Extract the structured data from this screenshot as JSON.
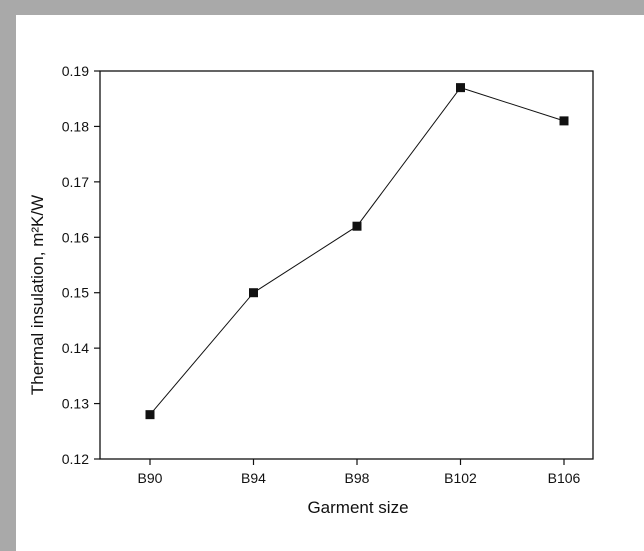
{
  "chart_data": {
    "type": "line",
    "categories": [
      "B90",
      "B94",
      "B98",
      "B102",
      "B106"
    ],
    "values": [
      0.128,
      0.15,
      0.162,
      0.187,
      0.181
    ],
    "xlabel": "Garment size",
    "ylabel": "Thermal insulation, m²K/W",
    "ylim": [
      0.12,
      0.19
    ],
    "yticks": [
      "0.12",
      "0.13",
      "0.14",
      "0.15",
      "0.16",
      "0.17",
      "0.18",
      "0.19"
    ],
    "marker": "square",
    "grid": false,
    "colors": {
      "line": "#111111",
      "marker": "#111111",
      "frame_border": "#a9a9a9"
    }
  }
}
